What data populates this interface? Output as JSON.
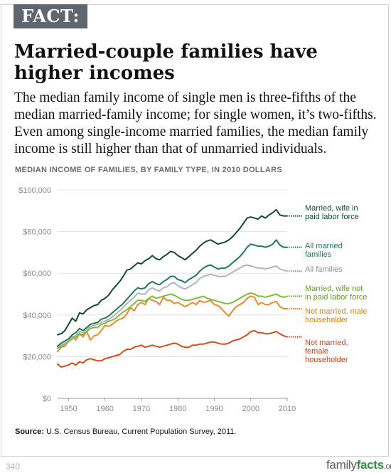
{
  "tag": "FACT:",
  "headline": "Married-couple families have higher incomes",
  "subhead": "The median family income of single men is three-fifths of the median married-family income; for single women, it’s two-fifths. Even among single-income married families, the median family income is still higher than that of unmarried individuals.",
  "source": {
    "label": "Source:",
    "text": "U.S. Census Bureau, Current Population Survey, 2011."
  },
  "page_number": "340",
  "brand": {
    "part1": "family",
    "part2": "facts",
    "part3": ".org"
  },
  "chart_data": {
    "type": "line",
    "title": "MEDIAN INCOME OF FAMILIES, BY FAMILY TYPE, IN 2010 DOLLARS",
    "xlim": [
      1947,
      2010
    ],
    "ylim": [
      0,
      100000
    ],
    "x_ticks": [
      1950,
      1960,
      1970,
      1980,
      1990,
      2000,
      2010
    ],
    "x_tick_labels": [
      "1950",
      "1960",
      "1970",
      "1980",
      "1990",
      "2000",
      "2010"
    ],
    "y_ticks": [
      0,
      20000,
      40000,
      60000,
      80000,
      100000
    ],
    "y_tick_labels": [
      "$0",
      "$20,000",
      "$40,000",
      "$60,000",
      "$80,000",
      "$100,000"
    ],
    "grid": "horizontal",
    "legend": "right, direct labels",
    "series": [
      {
        "name": "Married, wife in paid labor force",
        "label_lines": [
          "Married, wife in",
          "paid labor force"
        ],
        "color": "#13492f",
        "label_color": "#13492f",
        "x": [
          1947,
          1948,
          1949,
          1950,
          1951,
          1952,
          1953,
          1954,
          1955,
          1956,
          1957,
          1958,
          1959,
          1960,
          1961,
          1962,
          1963,
          1964,
          1965,
          1966,
          1967,
          1968,
          1969,
          1970,
          1971,
          1972,
          1973,
          1974,
          1975,
          1976,
          1977,
          1978,
          1979,
          1980,
          1981,
          1982,
          1983,
          1984,
          1985,
          1986,
          1987,
          1988,
          1989,
          1990,
          1991,
          1992,
          1993,
          1994,
          1995,
          1996,
          1997,
          1998,
          1999,
          2000,
          2001,
          2002,
          2003,
          2004,
          2005,
          2006,
          2007,
          2008,
          2009,
          2010
        ],
        "y": [
          30500,
          31000,
          32500,
          35500,
          38500,
          37000,
          41000,
          40500,
          42500,
          43500,
          44500,
          45000,
          47000,
          48000,
          49500,
          52000,
          54000,
          56000,
          58500,
          61500,
          62000,
          63500,
          65000,
          64500,
          66000,
          67000,
          68500,
          67000,
          66500,
          68000,
          69000,
          70500,
          70000,
          68500,
          67500,
          66500,
          68000,
          69500,
          71000,
          73000,
          74500,
          75500,
          76000,
          75000,
          74000,
          74500,
          75000,
          76000,
          77500,
          79500,
          81500,
          84000,
          86500,
          87000,
          86500,
          86000,
          87500,
          86500,
          88000,
          89000,
          90500,
          88000,
          87500,
          87500
        ]
      },
      {
        "name": "All married families",
        "label_lines": [
          "All married",
          "families"
        ],
        "color": "#1d7a55",
        "label_color": "#1d7a55",
        "x": [
          1947,
          1948,
          1949,
          1950,
          1951,
          1952,
          1953,
          1954,
          1955,
          1956,
          1957,
          1958,
          1959,
          1960,
          1961,
          1962,
          1963,
          1964,
          1965,
          1966,
          1967,
          1968,
          1969,
          1970,
          1971,
          1972,
          1973,
          1974,
          1975,
          1976,
          1977,
          1978,
          1979,
          1980,
          1981,
          1982,
          1983,
          1984,
          1985,
          1986,
          1987,
          1988,
          1989,
          1990,
          1991,
          1992,
          1993,
          1994,
          1995,
          1996,
          1997,
          1998,
          1999,
          2000,
          2001,
          2002,
          2003,
          2004,
          2005,
          2006,
          2007,
          2008,
          2009,
          2010
        ],
        "y": [
          25000,
          26500,
          27500,
          28500,
          30500,
          31500,
          33500,
          32500,
          34000,
          35500,
          36000,
          36500,
          38000,
          38500,
          39500,
          41000,
          42500,
          44000,
          45500,
          47500,
          49500,
          51500,
          53000,
          52500,
          53000,
          55000,
          56000,
          55000,
          54500,
          56000,
          57000,
          58500,
          58500,
          57000,
          56500,
          55500,
          57000,
          58000,
          59000,
          61000,
          62500,
          63500,
          64000,
          63000,
          62000,
          62500,
          62500,
          63500,
          65000,
          66500,
          68000,
          70000,
          72500,
          74000,
          73500,
          73000,
          73000,
          72500,
          73000,
          74000,
          76000,
          73500,
          72500,
          72500
        ]
      },
      {
        "name": "All families",
        "label_lines": [
          "All families"
        ],
        "color": "#b3b3b3",
        "label_color": "#8a8a8a",
        "x": [
          1947,
          1948,
          1949,
          1950,
          1951,
          1952,
          1953,
          1954,
          1955,
          1956,
          1957,
          1958,
          1959,
          1960,
          1961,
          1962,
          1963,
          1964,
          1965,
          1966,
          1967,
          1968,
          1969,
          1970,
          1971,
          1972,
          1973,
          1974,
          1975,
          1976,
          1977,
          1978,
          1979,
          1980,
          1981,
          1982,
          1983,
          1984,
          1985,
          1986,
          1987,
          1988,
          1989,
          1990,
          1991,
          1992,
          1993,
          1994,
          1995,
          1996,
          1997,
          1998,
          1999,
          2000,
          2001,
          2002,
          2003,
          2004,
          2005,
          2006,
          2007,
          2008,
          2009,
          2010
        ],
        "y": [
          24500,
          25500,
          26500,
          27500,
          29500,
          30000,
          32000,
          31500,
          33000,
          34500,
          35000,
          35500,
          36500,
          37000,
          38000,
          39000,
          40500,
          42000,
          43500,
          45500,
          47000,
          48500,
          50500,
          50000,
          50000,
          52000,
          53000,
          52000,
          51500,
          53000,
          53500,
          55000,
          55500,
          54000,
          53000,
          52500,
          53500,
          54500,
          55500,
          57500,
          58500,
          59000,
          59500,
          59000,
          58500,
          58500,
          58500,
          59500,
          60500,
          61500,
          62500,
          63500,
          64000,
          63500,
          63000,
          62500,
          62500,
          62000,
          62500,
          63000,
          63500,
          62000,
          61500,
          61000
        ]
      },
      {
        "name": "Married, wife not in paid labor force",
        "label_lines": [
          "Married, wife not",
          "in paid labor force"
        ],
        "color": "#7dbb3c",
        "label_color": "#5e9e1f",
        "x": [
          1947,
          1948,
          1949,
          1950,
          1951,
          1952,
          1953,
          1954,
          1955,
          1956,
          1957,
          1958,
          1959,
          1960,
          1961,
          1962,
          1963,
          1964,
          1965,
          1966,
          1967,
          1968,
          1969,
          1970,
          1971,
          1972,
          1973,
          1974,
          1975,
          1976,
          1977,
          1978,
          1979,
          1980,
          1981,
          1982,
          1983,
          1984,
          1985,
          1986,
          1987,
          1988,
          1989,
          1990,
          1991,
          1992,
          1993,
          1994,
          1995,
          1996,
          1997,
          1998,
          1999,
          2000,
          2001,
          2002,
          2003,
          2004,
          2005,
          2006,
          2007,
          2008,
          2009,
          2010
        ],
        "y": [
          24000,
          25000,
          26000,
          27000,
          28500,
          29500,
          31000,
          30500,
          32000,
          33500,
          34000,
          34000,
          35500,
          36000,
          37000,
          37500,
          38500,
          40000,
          41500,
          42500,
          44000,
          45500,
          47000,
          47000,
          46500,
          48000,
          49000,
          48000,
          48500,
          49000,
          49500,
          50000,
          49500,
          48500,
          47500,
          47000,
          47000,
          47500,
          48000,
          48500,
          49000,
          48000,
          47500,
          47000,
          46500,
          46000,
          45500,
          45500,
          46000,
          47000,
          48000,
          49000,
          50000,
          50500,
          50000,
          49000,
          49000,
          48500,
          49000,
          49500,
          50000,
          49000,
          48500,
          49000
        ]
      },
      {
        "name": "Not married, male householder",
        "label_lines": [
          "Not married, male",
          "householder"
        ],
        "color": "#e88a2c",
        "label_color": "#e07d10",
        "x": [
          1947,
          1948,
          1949,
          1950,
          1951,
          1952,
          1953,
          1954,
          1955,
          1956,
          1957,
          1958,
          1959,
          1960,
          1961,
          1962,
          1963,
          1964,
          1965,
          1966,
          1967,
          1968,
          1969,
          1970,
          1971,
          1972,
          1973,
          1974,
          1975,
          1976,
          1977,
          1978,
          1979,
          1980,
          1981,
          1982,
          1983,
          1984,
          1985,
          1986,
          1987,
          1988,
          1989,
          1990,
          1991,
          1992,
          1993,
          1994,
          1995,
          1996,
          1997,
          1998,
          1999,
          2000,
          2001,
          2002,
          2003,
          2004,
          2005,
          2006,
          2007,
          2008,
          2009,
          2010
        ],
        "y": [
          22500,
          24500,
          25000,
          27500,
          30000,
          28000,
          31000,
          29500,
          32000,
          28000,
          30000,
          30500,
          32500,
          35000,
          34500,
          35500,
          37000,
          38000,
          38500,
          40500,
          43500,
          42000,
          45000,
          46000,
          45000,
          48000,
          47000,
          46500,
          45000,
          48500,
          47000,
          47000,
          45500,
          46000,
          45000,
          44000,
          45000,
          46000,
          45000,
          47000,
          46000,
          46500,
          47000,
          45000,
          44500,
          43000,
          41000,
          39500,
          42000,
          44000,
          45000,
          46000,
          48000,
          49000,
          48500,
          45000,
          46000,
          45000,
          45000,
          46000,
          46500,
          44000,
          43000,
          43000
        ]
      },
      {
        "name": "Not married, female householder",
        "label_lines": [
          "Not married,",
          "female",
          "householder"
        ],
        "color": "#d64b1b",
        "label_color": "#d0401a",
        "x": [
          1947,
          1948,
          1949,
          1950,
          1951,
          1952,
          1953,
          1954,
          1955,
          1956,
          1957,
          1958,
          1959,
          1960,
          1961,
          1962,
          1963,
          1964,
          1965,
          1966,
          1967,
          1968,
          1969,
          1970,
          1971,
          1972,
          1973,
          1974,
          1975,
          1976,
          1977,
          1978,
          1979,
          1980,
          1981,
          1982,
          1983,
          1984,
          1985,
          1986,
          1987,
          1988,
          1989,
          1990,
          1991,
          1992,
          1993,
          1994,
          1995,
          1996,
          1997,
          1998,
          1999,
          2000,
          2001,
          2002,
          2003,
          2004,
          2005,
          2006,
          2007,
          2008,
          2009,
          2010
        ],
        "y": [
          16500,
          15000,
          15500,
          16000,
          17000,
          16000,
          17500,
          17000,
          18500,
          19000,
          18500,
          18000,
          18000,
          19000,
          19500,
          20000,
          20500,
          21000,
          22500,
          23500,
          23500,
          24500,
          25000,
          25500,
          24500,
          25000,
          25500,
          25000,
          24500,
          25000,
          25500,
          26000,
          26500,
          26000,
          25000,
          24500,
          24500,
          25500,
          25500,
          26000,
          26000,
          26500,
          27000,
          27000,
          26500,
          26000,
          26000,
          26500,
          27500,
          28000,
          28500,
          29500,
          30500,
          32000,
          32500,
          31500,
          31500,
          31000,
          31000,
          31500,
          32000,
          31000,
          30000,
          29500
        ]
      }
    ]
  }
}
